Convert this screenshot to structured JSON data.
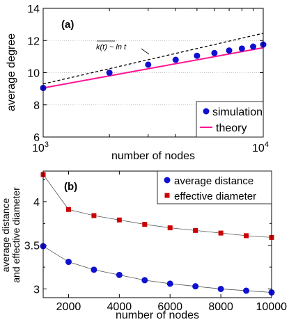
{
  "chart_data": [
    {
      "panel_label": "(a)",
      "type": "scatter",
      "x_scale": "log",
      "xlim": [
        1000,
        10000
      ],
      "ylim": [
        6,
        14
      ],
      "xlabel": "number of nodes",
      "ylabel": "average degree",
      "x_tick_labels": [
        {
          "base": "10",
          "exp": "3",
          "value": 1000
        },
        {
          "base": "10",
          "exp": "4",
          "value": 10000
        }
      ],
      "y_ticks": [
        6,
        8,
        10,
        12,
        14
      ],
      "y_tick_labels": [
        "6",
        "8",
        "10",
        "12",
        "14"
      ],
      "annotation": "k(t) ~ ln t",
      "legend_position": "bottom-right",
      "series": [
        {
          "name": "simulation",
          "kind": "points",
          "color": "#1010d0",
          "x": [
            1000,
            2000,
            3000,
            4000,
            5000,
            6000,
            7000,
            8000,
            9000,
            10000
          ],
          "y": [
            9.05,
            10.0,
            10.5,
            10.8,
            11.05,
            11.22,
            11.38,
            11.5,
            11.62,
            11.75
          ]
        },
        {
          "name": "theory",
          "kind": "line",
          "color": "#ff1493",
          "x": [
            1000,
            10000
          ],
          "y": [
            9.05,
            11.55
          ]
        },
        {
          "name": "",
          "kind": "dashed-line",
          "color": "#000000",
          "x": [
            1000,
            10000
          ],
          "y": [
            9.3,
            12.45
          ]
        }
      ]
    },
    {
      "panel_label": "(b)",
      "type": "line",
      "xlim": [
        1000,
        10000
      ],
      "ylim": [
        2.9,
        4.35
      ],
      "xlabel": "number of nodes",
      "ylabel_lines": [
        "average distance",
        "and effective diameter"
      ],
      "x_ticks": [
        2000,
        4000,
        6000,
        8000,
        10000
      ],
      "x_tick_labels": [
        "2000",
        "4000",
        "6000",
        "8000",
        "10000"
      ],
      "y_ticks": [
        3,
        3.5,
        4
      ],
      "y_tick_labels": [
        "3",
        "3.5",
        "4"
      ],
      "legend_position": "top-right",
      "series": [
        {
          "name": "average distance",
          "marker": "circle",
          "color": "#1010d0",
          "x": [
            1000,
            2000,
            3000,
            4000,
            5000,
            6000,
            7000,
            8000,
            9000,
            10000
          ],
          "y": [
            3.49,
            3.31,
            3.22,
            3.16,
            3.1,
            3.06,
            3.03,
            3.0,
            2.98,
            2.96
          ]
        },
        {
          "name": "effective diameter",
          "marker": "square",
          "color": "#cc0000",
          "x": [
            1000,
            2000,
            3000,
            4000,
            5000,
            6000,
            7000,
            8000,
            9000,
            10000
          ],
          "y": [
            4.31,
            3.91,
            3.84,
            3.79,
            3.74,
            3.7,
            3.67,
            3.64,
            3.61,
            3.59
          ]
        }
      ]
    }
  ]
}
